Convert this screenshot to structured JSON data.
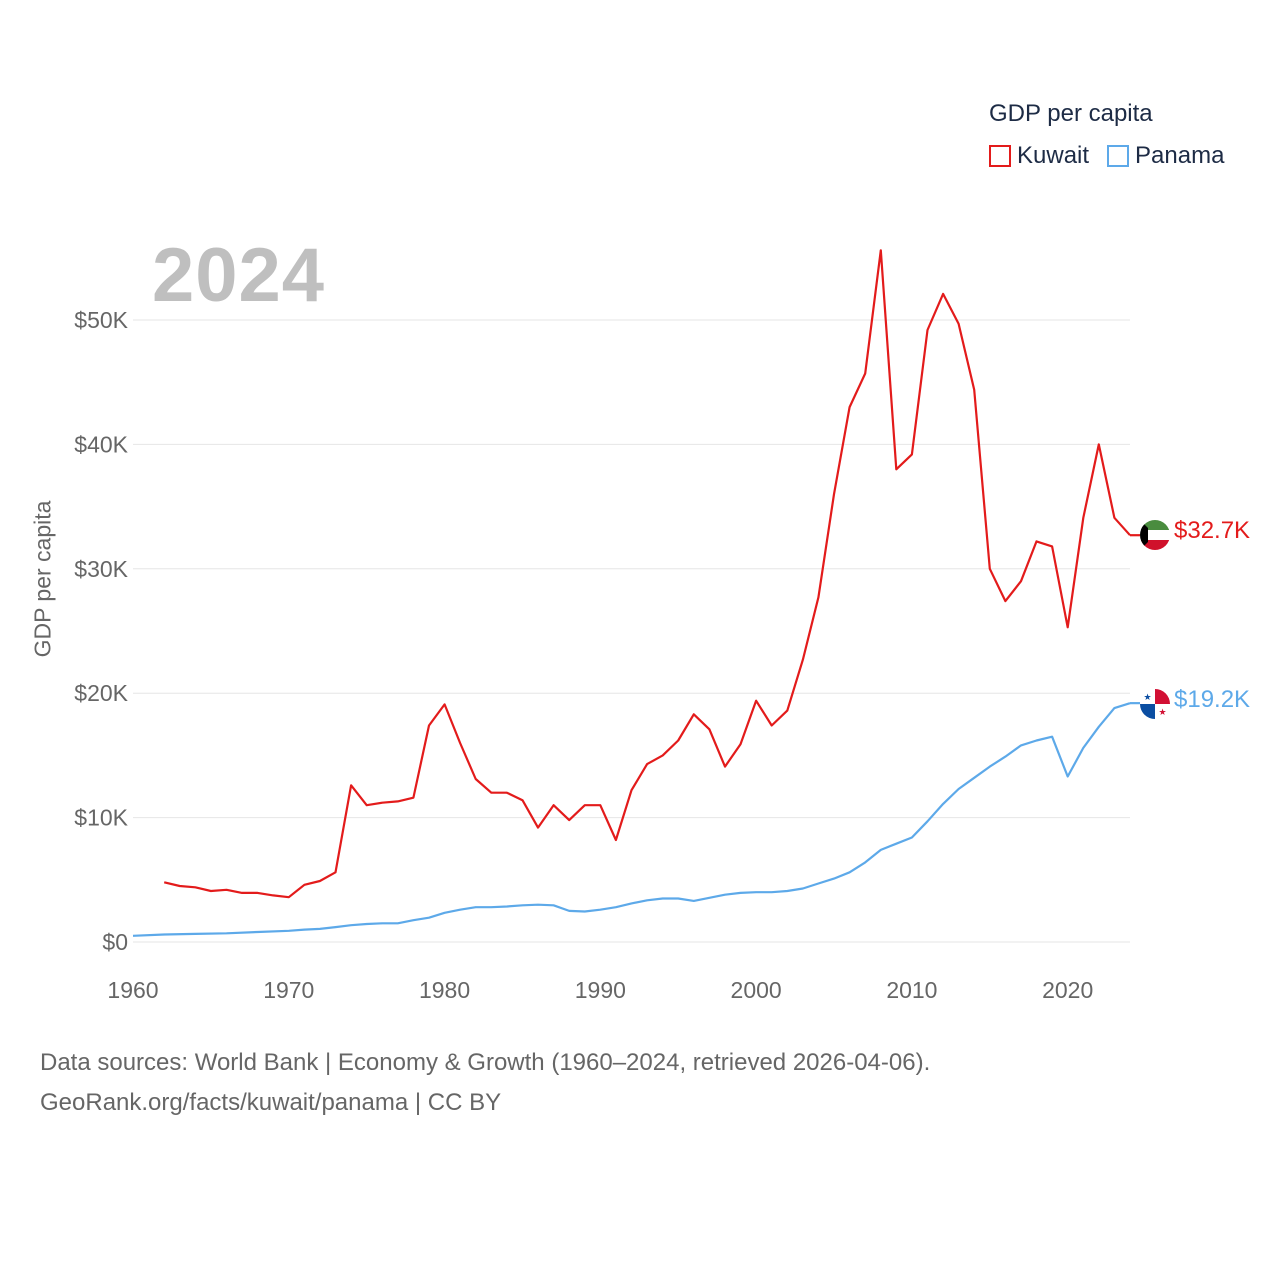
{
  "legend": {
    "title": "GDP per capita",
    "items": [
      {
        "name": "Kuwait",
        "color": "#e31b1b"
      },
      {
        "name": "Panama",
        "color": "#5da9e9"
      }
    ]
  },
  "year_watermark": "2024",
  "footer": {
    "line1": "Data sources: World Bank | Economy & Growth (1960–2024, retrieved 2026-04-06).",
    "line2": "GeoRank.org/facts/kuwait/panama | CC BY"
  },
  "chart_data": {
    "type": "line",
    "title": "",
    "xlabel": "",
    "ylabel": "GDP per capita",
    "xlim": [
      1960,
      2024
    ],
    "ylim": [
      0,
      50000
    ],
    "x_ticks": [
      1960,
      1970,
      1980,
      1990,
      2000,
      2010,
      2020
    ],
    "y_ticks": [
      {
        "value": 0,
        "label": "$0"
      },
      {
        "value": 10000,
        "label": "$10K"
      },
      {
        "value": 20000,
        "label": "$20K"
      },
      {
        "value": 30000,
        "label": "$30K"
      },
      {
        "value": 40000,
        "label": "$40K"
      },
      {
        "value": 50000,
        "label": "$50K"
      }
    ],
    "grid": true,
    "series": [
      {
        "name": "Kuwait",
        "color": "#e31b1b",
        "end_label": "$32.7K",
        "flag": "kuwait-flag-icon",
        "x": [
          1962,
          1963,
          1964,
          1965,
          1966,
          1967,
          1968,
          1969,
          1970,
          1971,
          1972,
          1973,
          1974,
          1975,
          1976,
          1977,
          1978,
          1979,
          1980,
          1981,
          1982,
          1983,
          1984,
          1985,
          1986,
          1987,
          1988,
          1989,
          1990,
          1991,
          1992,
          1993,
          1994,
          1995,
          1996,
          1997,
          1998,
          1999,
          2000,
          2001,
          2002,
          2003,
          2004,
          2005,
          2006,
          2007,
          2008,
          2009,
          2010,
          2011,
          2012,
          2013,
          2014,
          2015,
          2016,
          2017,
          2018,
          2019,
          2020,
          2021,
          2022,
          2023,
          2024
        ],
        "values": [
          4800,
          4500,
          4400,
          4100,
          4200,
          3950,
          3950,
          3750,
          3600,
          4600,
          4900,
          5600,
          12600,
          11000,
          11200,
          11300,
          11600,
          17400,
          19100,
          16000,
          13100,
          12000,
          12000,
          11400,
          9200,
          11000,
          9800,
          11000,
          11000,
          8200,
          12200,
          14300,
          15000,
          16200,
          18300,
          17100,
          14100,
          15900,
          19400,
          17400,
          18600,
          22700,
          27700,
          36000,
          43000,
          45700,
          55600,
          38000,
          39200,
          49200,
          52100,
          49700,
          44400,
          30000,
          27400,
          29000,
          32200,
          31800,
          25300,
          34100,
          40000,
          34100,
          32700
        ]
      },
      {
        "name": "Panama",
        "color": "#5da9e9",
        "end_label": "$19.2K",
        "flag": "panama-flag-icon",
        "x": [
          1960,
          1962,
          1964,
          1966,
          1968,
          1970,
          1971,
          1972,
          1973,
          1974,
          1975,
          1976,
          1977,
          1978,
          1979,
          1980,
          1981,
          1982,
          1983,
          1984,
          1985,
          1986,
          1987,
          1988,
          1989,
          1990,
          1991,
          1992,
          1993,
          1994,
          1995,
          1996,
          1997,
          1998,
          1999,
          2000,
          2001,
          2002,
          2003,
          2004,
          2005,
          2006,
          2007,
          2008,
          2009,
          2010,
          2011,
          2012,
          2013,
          2014,
          2015,
          2016,
          2017,
          2018,
          2019,
          2020,
          2021,
          2022,
          2023,
          2024
        ],
        "values": [
          500,
          600,
          650,
          700,
          800,
          900,
          1000,
          1050,
          1200,
          1350,
          1450,
          1500,
          1500,
          1750,
          1950,
          2350,
          2600,
          2800,
          2800,
          2850,
          2950,
          3000,
          2950,
          2500,
          2450,
          2600,
          2800,
          3100,
          3350,
          3500,
          3500,
          3300,
          3550,
          3800,
          3950,
          4000,
          4000,
          4100,
          4300,
          4700,
          5100,
          5600,
          6400,
          7400,
          7900,
          8400,
          9700,
          11100,
          12300,
          13200,
          14100,
          14900,
          15800,
          16200,
          16500,
          13300,
          15600,
          17300,
          18800,
          19200
        ]
      }
    ]
  }
}
